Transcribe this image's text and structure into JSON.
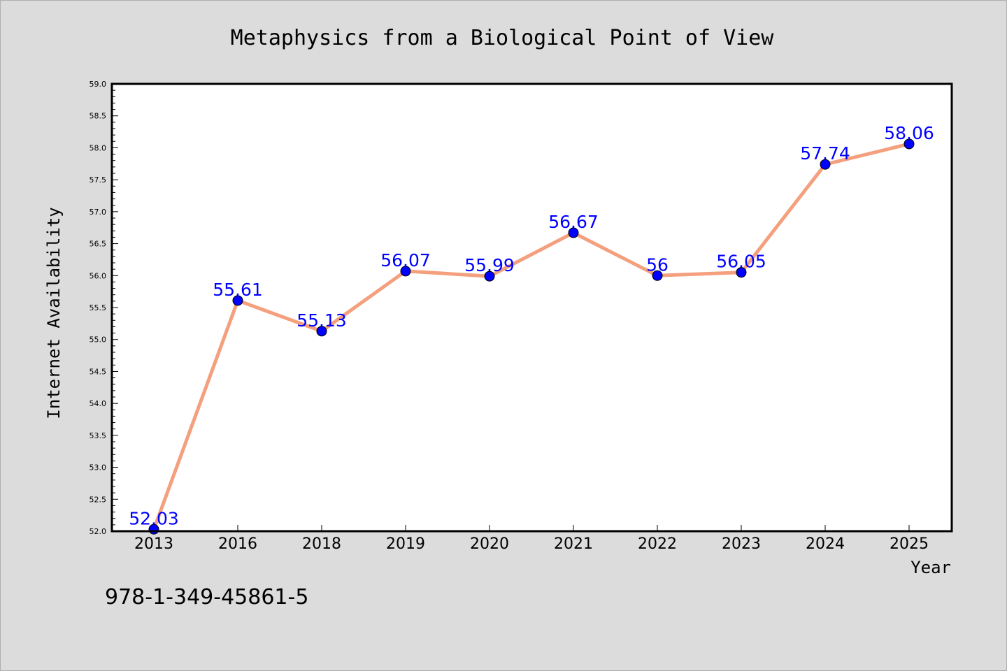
{
  "chart_data": {
    "type": "line",
    "title": "Metaphysics from a Biological Point of View",
    "xlabel": "Year",
    "ylabel": "Internet Availability",
    "categories": [
      "2013",
      "2016",
      "2018",
      "2019",
      "2020",
      "2021",
      "2022",
      "2023",
      "2024",
      "2025"
    ],
    "series": [
      {
        "values": [
          52.03,
          55.61,
          55.13,
          56.07,
          55.99,
          56.67,
          56,
          56.05,
          57.74,
          58.06
        ],
        "line_color": "#f4a07e",
        "marker_color": "#0000ff"
      }
    ],
    "data_labels": [
      "52.03",
      "55.61",
      "55.13",
      "56.07",
      "55.99",
      "56.67",
      "56",
      "56.05",
      "57.74",
      "58.06"
    ],
    "ylim": [
      52.0,
      59.0
    ],
    "yticks": [
      "52.0",
      "52.5",
      "53.0",
      "53.5",
      "54.0",
      "54.5",
      "55.0",
      "55.5",
      "56.0",
      "56.5",
      "57.0",
      "57.5",
      "58.0",
      "58.5",
      "59.0"
    ],
    "grid": false,
    "legend": "none"
  },
  "footer": {
    "isbn": "978-1-349-45861-5"
  }
}
